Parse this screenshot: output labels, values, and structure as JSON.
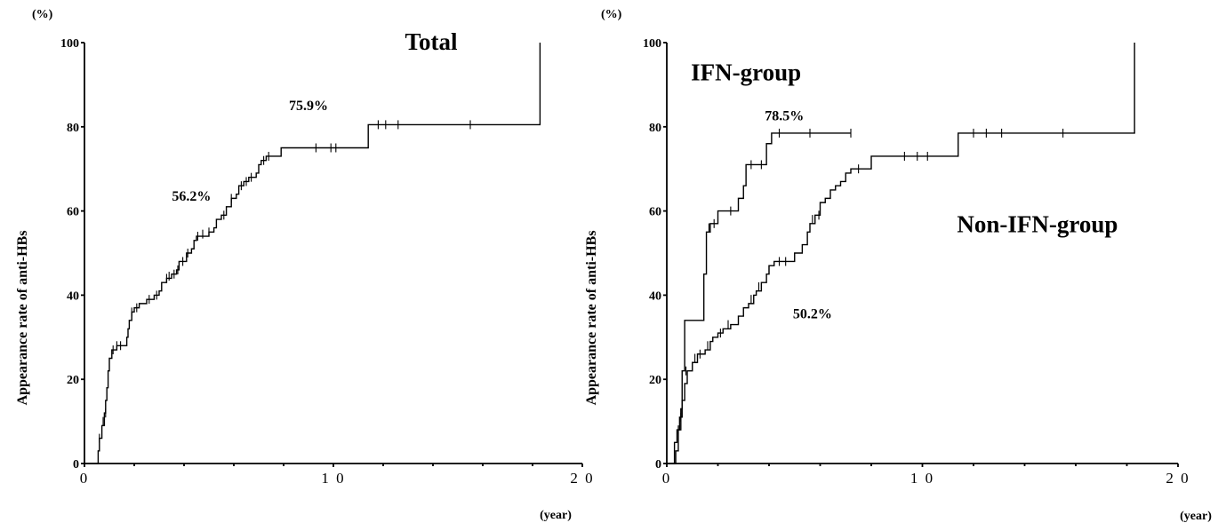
{
  "chart_data": [
    {
      "type": "line",
      "title": "Total",
      "ylabel": "Appearance rate of anti-HBs",
      "y_unit": "(%)",
      "x_unit": "(year)",
      "xlim": [
        0,
        20
      ],
      "ylim": [
        0,
        100
      ],
      "x_ticks": [
        0,
        10,
        20
      ],
      "x_tick_labels": [
        "0",
        "1 0",
        "2 0"
      ],
      "y_ticks": [
        0,
        20,
        40,
        60,
        80,
        100
      ],
      "y_tick_labels": [
        "0",
        "20",
        "40",
        "60",
        "80",
        "100"
      ],
      "annotations": [
        {
          "text": "56.2%",
          "x": 4.3,
          "y": 62.5
        },
        {
          "text": "75.9%",
          "x": 9.0,
          "y": 84.0
        }
      ],
      "series": [
        {
          "steps": [
            [
              0,
              0
            ],
            [
              0.5,
              0
            ],
            [
              0.55,
              3
            ],
            [
              0.6,
              6
            ],
            [
              0.7,
              9
            ],
            [
              0.8,
              12
            ],
            [
              0.85,
              15
            ],
            [
              0.9,
              18
            ],
            [
              0.95,
              22
            ],
            [
              1.0,
              25
            ],
            [
              1.1,
              27
            ],
            [
              1.3,
              28
            ],
            [
              1.7,
              30
            ],
            [
              1.75,
              32
            ],
            [
              1.8,
              34
            ],
            [
              1.9,
              36
            ],
            [
              2.0,
              37
            ],
            [
              2.2,
              38
            ],
            [
              2.5,
              39
            ],
            [
              2.8,
              40
            ],
            [
              3.0,
              41
            ],
            [
              3.1,
              43
            ],
            [
              3.3,
              44
            ],
            [
              3.5,
              45
            ],
            [
              3.7,
              46
            ],
            [
              3.8,
              48
            ],
            [
              4.1,
              50
            ],
            [
              4.3,
              51
            ],
            [
              4.4,
              53
            ],
            [
              4.5,
              54
            ],
            [
              5.0,
              55
            ],
            [
              5.2,
              56
            ],
            [
              5.3,
              58
            ],
            [
              5.5,
              59
            ],
            [
              5.7,
              61
            ],
            [
              5.9,
              63
            ],
            [
              6.1,
              64
            ],
            [
              6.2,
              66
            ],
            [
              6.4,
              67
            ],
            [
              6.6,
              68
            ],
            [
              6.9,
              69
            ],
            [
              7.0,
              71
            ],
            [
              7.1,
              72
            ],
            [
              7.3,
              73
            ],
            [
              7.9,
              75
            ],
            [
              11.4,
              75
            ],
            [
              11.4,
              80.5
            ],
            [
              18.3,
              80.5
            ],
            [
              18.3,
              100
            ]
          ],
          "censored": [
            [
              0.6,
              6
            ],
            [
              0.75,
              10
            ],
            [
              0.85,
              12
            ],
            [
              1.15,
              27
            ],
            [
              1.3,
              28
            ],
            [
              1.45,
              28
            ],
            [
              1.9,
              36
            ],
            [
              2.1,
              37
            ],
            [
              2.6,
              39
            ],
            [
              2.9,
              40
            ],
            [
              3.3,
              44
            ],
            [
              3.4,
              44.5
            ],
            [
              3.6,
              45
            ],
            [
              3.75,
              46
            ],
            [
              3.95,
              48
            ],
            [
              4.15,
              50
            ],
            [
              4.55,
              54
            ],
            [
              4.75,
              54.5
            ],
            [
              5.0,
              55
            ],
            [
              5.6,
              59
            ],
            [
              5.9,
              63
            ],
            [
              6.3,
              66
            ],
            [
              6.5,
              67
            ],
            [
              6.7,
              68
            ],
            [
              7.2,
              72
            ],
            [
              7.4,
              73
            ],
            [
              9.3,
              75
            ],
            [
              9.9,
              75
            ],
            [
              10.1,
              75
            ],
            [
              11.8,
              80.5
            ],
            [
              12.1,
              80.5
            ],
            [
              12.6,
              80.5
            ],
            [
              15.5,
              80.5
            ]
          ]
        }
      ]
    },
    {
      "type": "line",
      "ylabel": "Appearance rate of anti-HBs",
      "y_unit": "(%)",
      "x_unit": "(year)",
      "xlim": [
        0,
        20
      ],
      "ylim": [
        0,
        100
      ],
      "x_ticks": [
        0,
        10,
        20
      ],
      "x_tick_labels": [
        "0",
        "1 0",
        "2 0"
      ],
      "y_ticks": [
        0,
        20,
        40,
        60,
        80,
        100
      ],
      "y_tick_labels": [
        "0",
        "20",
        "40",
        "60",
        "80",
        "100"
      ],
      "annotations": [
        {
          "text": "78.5%",
          "x": 4.6,
          "y": 81.5
        },
        {
          "text": "50.2%",
          "x": 5.7,
          "y": 34.5
        }
      ],
      "series": [
        {
          "name": "IFN-group",
          "label_position": {
            "x": 3.1,
            "y": 91
          },
          "steps": [
            [
              0,
              0
            ],
            [
              0.3,
              0
            ],
            [
              0.35,
              3
            ],
            [
              0.45,
              8
            ],
            [
              0.55,
              13
            ],
            [
              0.6,
              22
            ],
            [
              0.7,
              34
            ],
            [
              1.4,
              34
            ],
            [
              1.45,
              45
            ],
            [
              1.55,
              55
            ],
            [
              1.7,
              57
            ],
            [
              2.0,
              60
            ],
            [
              2.7,
              60
            ],
            [
              2.8,
              63
            ],
            [
              3.0,
              66
            ],
            [
              3.1,
              71
            ],
            [
              3.8,
              71
            ],
            [
              3.9,
              76
            ],
            [
              4.1,
              78.5
            ],
            [
              7.2,
              78.5
            ]
          ],
          "censored": [
            [
              1.65,
              56
            ],
            [
              1.85,
              57
            ],
            [
              2.5,
              60
            ],
            [
              3.3,
              71
            ],
            [
              3.7,
              71
            ],
            [
              4.4,
              78.5
            ],
            [
              5.6,
              78.5
            ],
            [
              7.2,
              78.5
            ]
          ]
        },
        {
          "name": "Non-IFN-group",
          "label_position": {
            "x": 14.5,
            "y": 55
          },
          "steps": [
            [
              0,
              0
            ],
            [
              0.2,
              0
            ],
            [
              0.3,
              5
            ],
            [
              0.4,
              8
            ],
            [
              0.5,
              11
            ],
            [
              0.6,
              15
            ],
            [
              0.7,
              19
            ],
            [
              0.8,
              22
            ],
            [
              1.0,
              24
            ],
            [
              1.2,
              26
            ],
            [
              1.5,
              27
            ],
            [
              1.7,
              29
            ],
            [
              1.8,
              30
            ],
            [
              2.0,
              31
            ],
            [
              2.2,
              32
            ],
            [
              2.5,
              33
            ],
            [
              2.8,
              35
            ],
            [
              3.0,
              37
            ],
            [
              3.2,
              38
            ],
            [
              3.4,
              40
            ],
            [
              3.5,
              41
            ],
            [
              3.7,
              43
            ],
            [
              3.9,
              45
            ],
            [
              4.0,
              47
            ],
            [
              4.2,
              48
            ],
            [
              4.8,
              48
            ],
            [
              5.0,
              50
            ],
            [
              5.3,
              52
            ],
            [
              5.5,
              55
            ],
            [
              5.6,
              57
            ],
            [
              5.8,
              59
            ],
            [
              6.0,
              62
            ],
            [
              6.2,
              63
            ],
            [
              6.4,
              65
            ],
            [
              6.6,
              66
            ],
            [
              6.8,
              67
            ],
            [
              7.0,
              69
            ],
            [
              7.2,
              70
            ],
            [
              8.0,
              73
            ],
            [
              11.4,
              73
            ],
            [
              11.4,
              78.5
            ],
            [
              18.3,
              78.5
            ],
            [
              18.3,
              100
            ]
          ],
          "censored": [
            [
              0.45,
              8
            ],
            [
              0.55,
              11
            ],
            [
              0.75,
              22
            ],
            [
              1.1,
              25
            ],
            [
              1.3,
              26
            ],
            [
              1.6,
              28
            ],
            [
              2.1,
              31
            ],
            [
              2.4,
              33
            ],
            [
              3.3,
              39
            ],
            [
              3.6,
              42
            ],
            [
              4.0,
              46
            ],
            [
              4.4,
              48
            ],
            [
              4.65,
              48
            ],
            [
              5.7,
              58
            ],
            [
              5.95,
              59
            ],
            [
              7.5,
              70
            ],
            [
              9.3,
              73
            ],
            [
              9.8,
              73
            ],
            [
              10.2,
              73
            ],
            [
              12.0,
              78.5
            ],
            [
              12.5,
              78.5
            ],
            [
              13.1,
              78.5
            ],
            [
              15.5,
              78.5
            ]
          ]
        }
      ]
    }
  ]
}
